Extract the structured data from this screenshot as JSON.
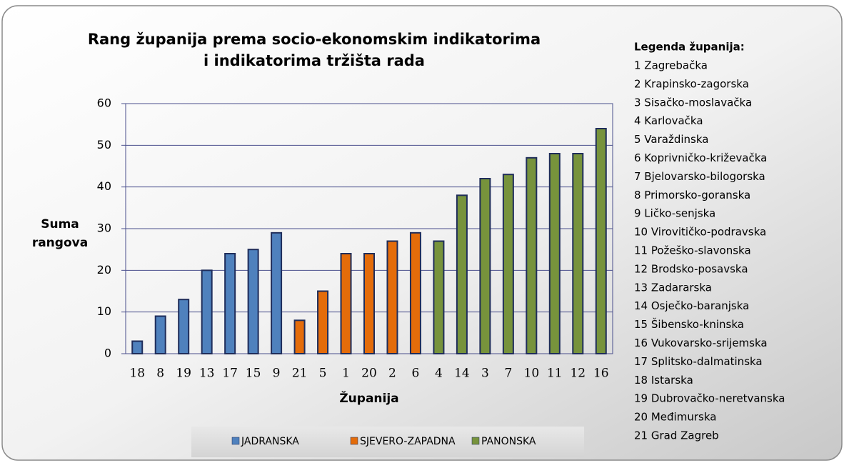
{
  "chart_data": {
    "type": "bar",
    "title": [
      "Rang županija prema socio-ekonomskim indikatorima",
      "i indikatorima tržišta rada"
    ],
    "x_label": "Županija",
    "y_label": [
      "Suma",
      "rangova"
    ],
    "categories": [
      "18",
      "8",
      "19",
      "13",
      "17",
      "15",
      "9",
      "21",
      "5",
      "1",
      "20",
      "2",
      "6",
      "4",
      "14",
      "3",
      "7",
      "10",
      "11",
      "12",
      "16"
    ],
    "series": [
      {
        "name": "JADRANSKA",
        "color": "#4f81bd",
        "values": [
          3,
          9,
          13,
          20,
          24,
          25,
          29,
          null,
          null,
          null,
          null,
          null,
          null,
          null,
          null,
          null,
          null,
          null,
          null,
          null,
          null
        ]
      },
      {
        "name": "SJEVERO-ZAPADNA",
        "color": "#e46c0a",
        "values": [
          null,
          null,
          null,
          null,
          null,
          null,
          null,
          8,
          15,
          24,
          24,
          27,
          29,
          null,
          null,
          null,
          null,
          null,
          null,
          null,
          null
        ]
      },
      {
        "name": "PANONSKA",
        "color": "#77933c",
        "values": [
          null,
          null,
          null,
          null,
          null,
          null,
          null,
          null,
          null,
          null,
          null,
          null,
          null,
          27,
          38,
          42,
          43,
          47,
          48,
          48,
          54
        ]
      }
    ],
    "ylim": [
      0,
      60
    ],
    "yticks": [
      0,
      10,
      20,
      30,
      40,
      50,
      60
    ],
    "grid": true,
    "legend": "bottom",
    "county_legend": {
      "title": "Legenda županija:",
      "items": [
        "1 Zagrebačka",
        "2 Krapinsko-zagorska",
        "3 Sisačko-moslavačka",
        "4 Karlovačka",
        "5 Varaždinska",
        "6 Koprivničko-križevačka",
        "7 Bjelovarsko-bilogorska",
        "8 Primorsko-goranska",
        "9 Ličko-senjska",
        "10 Virovitičko-podravska",
        "11 Požeško-slavonska",
        "12 Brodsko-posavska",
        "13 Zadararska",
        "14 Osječko-baranjska",
        "15 Šibensko-kninska",
        "16 Vukovarsko-srijemska",
        "17 Splitsko-dalmatinska",
        "18 Istarska",
        "19 Dubrovačko-neretvanska",
        "20 Međimurska",
        "21 Grad Zagreb"
      ]
    }
  }
}
